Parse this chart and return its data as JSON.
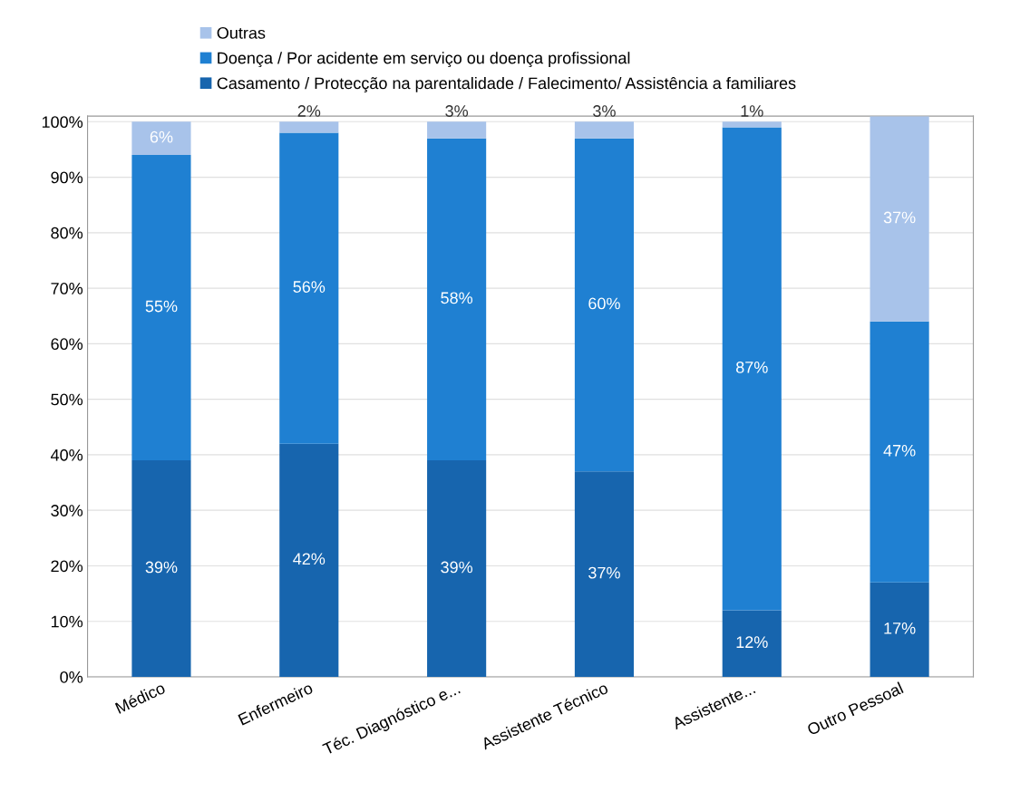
{
  "chart_data": {
    "type": "bar",
    "stacked": true,
    "categories": [
      "Médico",
      "Enfermeiro",
      "Téc. Diagnóstico e...",
      "Assistente Técnico",
      "Assistente...",
      "Outro Pessoal"
    ],
    "series": [
      {
        "name": "Casamento / Protecção na parentalidade / Falecimento/ Assistência a familiares",
        "color": "#1765ae",
        "values": [
          39,
          42,
          39,
          37,
          12,
          17
        ],
        "value_labels": [
          "39%",
          "42%",
          "39%",
          "37%",
          "12%",
          "17%"
        ]
      },
      {
        "name": "Doença / Por acidente em serviço ou doença profissional",
        "color": "#1f80d2",
        "values": [
          55,
          56,
          58,
          60,
          87,
          47
        ],
        "value_labels": [
          "55%",
          "56%",
          "58%",
          "60%",
          "87%",
          "47%"
        ]
      },
      {
        "name": "Outras",
        "color": "#a8c3ea",
        "values": [
          6,
          2,
          3,
          3,
          1,
          37
        ],
        "value_labels": [
          "6%",
          "2%",
          "3%",
          "3%",
          "1%",
          "37%"
        ]
      }
    ],
    "ylim": [
      0,
      101
    ],
    "yticks": [
      {
        "value": 0,
        "label": "0%"
      },
      {
        "value": 10,
        "label": "10%"
      },
      {
        "value": 20,
        "label": "20%"
      },
      {
        "value": 30,
        "label": "30%"
      },
      {
        "value": 40,
        "label": "40%"
      },
      {
        "value": 50,
        "label": "50%"
      },
      {
        "value": 60,
        "label": "60%"
      },
      {
        "value": 70,
        "label": "70%"
      },
      {
        "value": 80,
        "label": "80%"
      },
      {
        "value": 90,
        "label": "90%"
      },
      {
        "value": 100,
        "label": "100%"
      }
    ],
    "grid": "y",
    "legend": "top"
  }
}
